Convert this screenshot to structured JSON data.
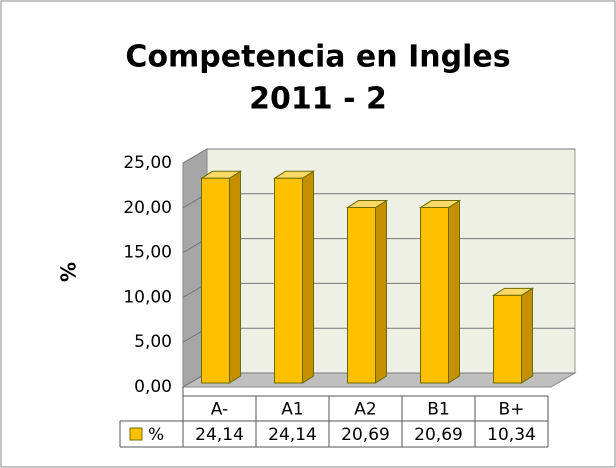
{
  "chart_data": {
    "type": "bar3d",
    "title": "Competencia en Ingles",
    "subtitle": "2011 - 2",
    "y_label": "%",
    "categories": [
      "A-",
      "A1",
      "A2",
      "B1",
      "B+"
    ],
    "series": [
      {
        "name": "%",
        "color": "#ffc000",
        "values": [
          24.14,
          24.14,
          20.69,
          20.69,
          10.34
        ],
        "value_labels": [
          "24,14",
          "24,14",
          "20,69",
          "20,69",
          "10,34"
        ]
      }
    ],
    "ylim": [
      0,
      25
    ],
    "yticks": [
      {
        "value": 0,
        "label": "0,00"
      },
      {
        "value": 5,
        "label": "5,00"
      },
      {
        "value": 10,
        "label": "10,00"
      },
      {
        "value": 15,
        "label": "15,00"
      },
      {
        "value": 20,
        "label": "20,00"
      },
      {
        "value": 25,
        "label": "25,00"
      }
    ],
    "grid": true,
    "data_table": true
  }
}
